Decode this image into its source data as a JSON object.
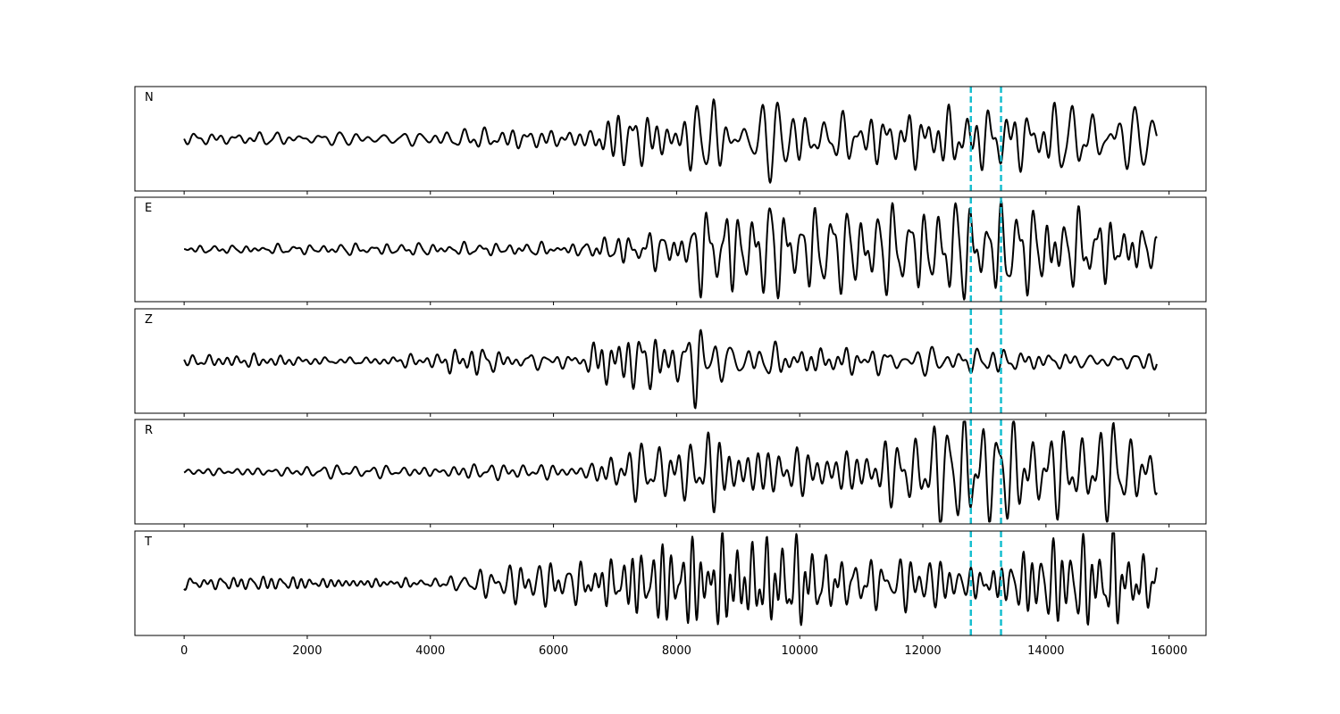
{
  "chart_data": {
    "type": "line",
    "panels": [
      {
        "label": "N",
        "seed": 11,
        "amplitude": [
          [
            0,
            0.1
          ],
          [
            4200,
            0.12
          ],
          [
            4400,
            0.22
          ],
          [
            5200,
            0.2
          ],
          [
            6600,
            0.18
          ],
          [
            6800,
            0.55
          ],
          [
            8500,
            0.7
          ],
          [
            8600,
            0.9
          ],
          [
            10000,
            0.75
          ],
          [
            10500,
            0.45
          ],
          [
            12200,
            0.55
          ],
          [
            15000,
            0.6
          ],
          [
            15100,
            0.9
          ],
          [
            15200,
            0.5
          ],
          [
            15800,
            0.45
          ]
        ]
      },
      {
        "label": "E",
        "seed": 23,
        "amplitude": [
          [
            0,
            0.08
          ],
          [
            3000,
            0.1
          ],
          [
            6600,
            0.14
          ],
          [
            6800,
            0.3
          ],
          [
            8200,
            0.4
          ],
          [
            8400,
            0.75
          ],
          [
            9900,
            0.7
          ],
          [
            10100,
            0.6
          ],
          [
            12000,
            0.6
          ],
          [
            12800,
            0.75
          ],
          [
            15000,
            0.7
          ],
          [
            15100,
            0.9
          ],
          [
            15300,
            0.55
          ],
          [
            15800,
            0.4
          ]
        ]
      },
      {
        "label": "Z",
        "seed": 37,
        "amplitude": [
          [
            0,
            0.1
          ],
          [
            4200,
            0.12
          ],
          [
            4300,
            0.25
          ],
          [
            6500,
            0.22
          ],
          [
            6800,
            0.75
          ],
          [
            7000,
            0.55
          ],
          [
            8200,
            0.55
          ],
          [
            8350,
            1.0
          ],
          [
            8500,
            0.55
          ],
          [
            10000,
            0.35
          ],
          [
            15800,
            0.22
          ]
        ]
      },
      {
        "label": "R",
        "seed": 53,
        "amplitude": [
          [
            0,
            0.08
          ],
          [
            4200,
            0.1
          ],
          [
            4400,
            0.14
          ],
          [
            6600,
            0.14
          ],
          [
            6800,
            0.4
          ],
          [
            8400,
            0.55
          ],
          [
            8500,
            0.85
          ],
          [
            9000,
            0.6
          ],
          [
            10500,
            0.45
          ],
          [
            12500,
            0.7
          ],
          [
            13000,
            0.8
          ],
          [
            15000,
            0.7
          ],
          [
            15100,
            0.9
          ],
          [
            15300,
            0.6
          ],
          [
            15800,
            0.45
          ]
        ]
      },
      {
        "label": "T",
        "seed": 71,
        "amplitude": [
          [
            0,
            0.1
          ],
          [
            4200,
            0.12
          ],
          [
            4400,
            0.22
          ],
          [
            6800,
            0.5
          ],
          [
            8500,
            0.75
          ],
          [
            8600,
            0.9
          ],
          [
            10100,
            0.8
          ],
          [
            10500,
            0.5
          ],
          [
            12200,
            0.6
          ],
          [
            15000,
            0.65
          ],
          [
            15100,
            0.95
          ],
          [
            15200,
            0.55
          ],
          [
            15800,
            0.45
          ]
        ]
      }
    ],
    "x_range": [
      0,
      15800
    ],
    "xlim": [
      -800,
      16600
    ],
    "ylim": [
      -1.2,
      1.2
    ],
    "xticks": [
      0,
      2000,
      4000,
      6000,
      8000,
      10000,
      12000,
      14000,
      16000
    ],
    "vlines": [
      12780,
      13270
    ],
    "line_color": "#000000",
    "vline_color": "#17becf",
    "xlabel": "",
    "ylabel": "",
    "title": ""
  }
}
